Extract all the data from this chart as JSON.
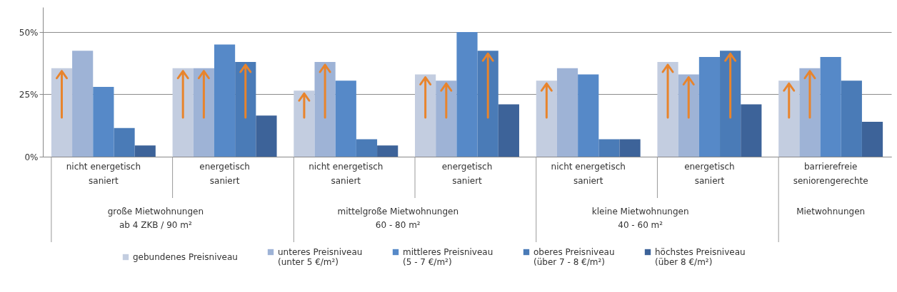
{
  "chart_data": {
    "type": "bar",
    "categories": [
      "nicht energetisch\nsaniert",
      "energetisch\nsaniert",
      "nicht energetisch\nsaniert",
      "energetisch\nsaniert",
      "nicht energetisch\nsaniert",
      "energetisch\nsaniert",
      "barrierefreie\nseniorengerechte"
    ],
    "series": [
      {
        "name": "gebundenes Preisniveau",
        "color": "#c3cde0",
        "values": [
          35.5,
          35.5,
          26.5,
          33,
          30.5,
          38,
          30.5
        ]
      },
      {
        "name": "unteres Preisniveau\n(unter 5 €/m²)",
        "color": "#9eb3d6",
        "values": [
          42.5,
          35.5,
          38,
          30.5,
          35.5,
          33,
          35.5
        ]
      },
      {
        "name": "mittleres Preisniveau\n(5 - 7 €/m²)",
        "color": "#5689c8",
        "values": [
          28,
          45,
          30.5,
          50,
          33,
          40,
          40
        ]
      },
      {
        "name": "oberes Preisniveau\n(über 7 - 8 €/m²)",
        "color": "#4a7bb7",
        "values": [
          11.5,
          38,
          7,
          42.5,
          7,
          42.5,
          30.5
        ]
      },
      {
        "name": "höchstes Preisniveau\n(über 8 €/m²)",
        "color": "#3d6399",
        "values": [
          4.5,
          16.5,
          4.5,
          21,
          7,
          21,
          14
        ]
      }
    ],
    "annotations": [
      "große Mietwohnungen\nab 4 ZKB / 90 m²",
      "mittelgroße Mietwohnungen\n60 - 80 m²",
      "kleine Mietwohnungen\n40 - 60 m²",
      "Mietwohnungen"
    ],
    "ylim": [
      0,
      60
    ],
    "yticks": [
      {
        "value": 0,
        "label": "0%"
      },
      {
        "value": 25,
        "label": "25%"
      },
      {
        "value": 50,
        "label": "50%"
      }
    ],
    "grid": "y",
    "legend": "bottom"
  }
}
